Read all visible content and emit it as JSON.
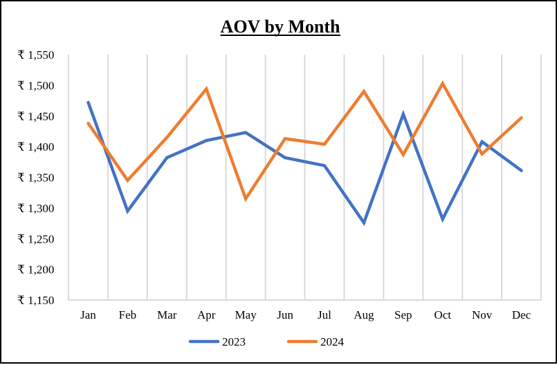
{
  "chart_data": {
    "type": "line",
    "title": "AOV by Month",
    "categories": [
      "Jan",
      "Feb",
      "Mar",
      "Apr",
      "May",
      "Jun",
      "Jul",
      "Aug",
      "Sep",
      "Oct",
      "Nov",
      "Dec"
    ],
    "series": [
      {
        "name": "2023",
        "color": "#4472c4",
        "values": [
          1472,
          1295,
          1382,
          1410,
          1423,
          1382,
          1369,
          1276,
          1453,
          1282,
          1408,
          1361
        ]
      },
      {
        "name": "2024",
        "color": "#ed7d31",
        "values": [
          1438,
          1345,
          1415,
          1494,
          1315,
          1413,
          1404,
          1490,
          1387,
          1503,
          1388,
          1447
        ]
      }
    ],
    "ylim": [
      1150,
      1550
    ],
    "yticks": [
      1550,
      1500,
      1450,
      1400,
      1350,
      1300,
      1250,
      1200,
      1150
    ],
    "ytick_labels": [
      "₹ 1,550",
      "₹ 1,500",
      "₹ 1,450",
      "₹ 1,400",
      "₹ 1,350",
      "₹ 1,300",
      "₹ 1,250",
      "₹ 1,200",
      "₹ 1,150"
    ],
    "xlabel": "",
    "ylabel": "",
    "grid": "vertical",
    "legend": "bottom"
  }
}
